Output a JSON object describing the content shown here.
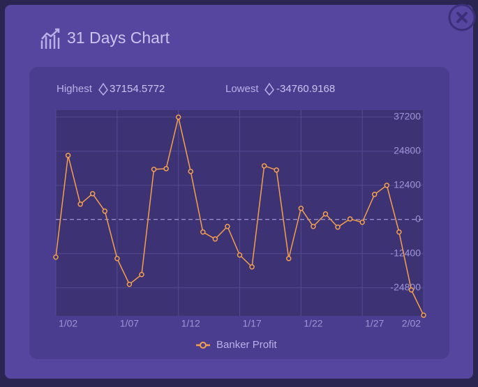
{
  "header": {
    "title": "31 Days Chart"
  },
  "stats": {
    "highest_label": "Highest",
    "highest_value": "37154.5772",
    "lowest_label": "Lowest",
    "lowest_value": "-34760.9168"
  },
  "chart_data": {
    "type": "line",
    "categories": [
      null,
      "1/02",
      null,
      null,
      null,
      null,
      "1/07",
      null,
      null,
      null,
      null,
      "1/12",
      null,
      null,
      null,
      null,
      "1/17",
      null,
      null,
      null,
      null,
      "1/22",
      null,
      null,
      null,
      null,
      "1/27",
      null,
      null,
      "2/02",
      null
    ],
    "series": [
      {
        "name": "Banker Profit",
        "color": "#f5a04e",
        "values": [
          -13665,
          23282,
          5567,
          9363,
          3037,
          -14171,
          -23535,
          -19992,
          18220,
          18473,
          37154.5772,
          17461,
          -4555,
          -7086,
          -2531,
          -12906,
          -17208,
          19486,
          17967,
          -14171,
          4049,
          -2531,
          2024,
          -2784,
          200,
          -1012,
          9110,
          12400,
          -4555,
          -25559,
          -34760.9168
        ]
      }
    ],
    "ylim": [
      -35000,
      39700
    ],
    "yticks": [
      37200,
      24800,
      12400,
      0,
      -12400,
      -24800
    ],
    "grid": true
  }
}
